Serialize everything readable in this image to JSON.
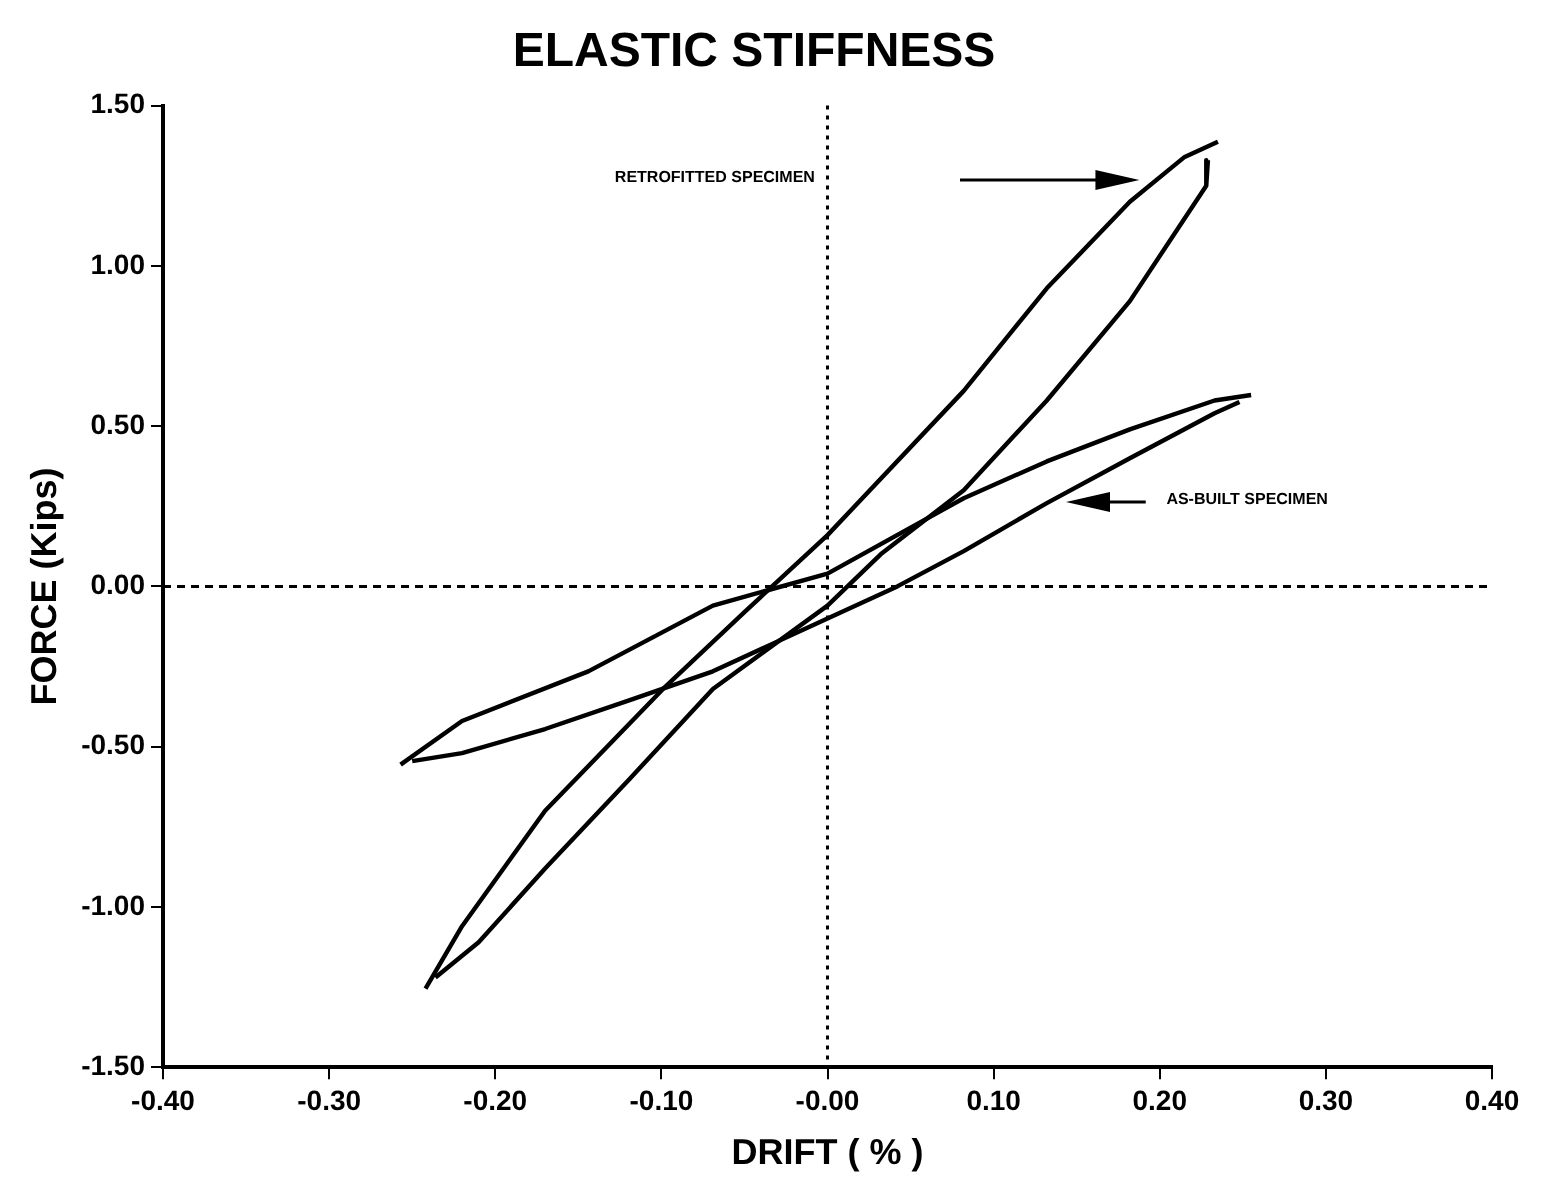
{
  "chart_data": {
    "type": "line",
    "title": "ELASTIC STIFFNESS",
    "xlabel": "DRIFT ( % )",
    "ylabel": "FORCE (Kips)",
    "xlim": [
      -0.4,
      0.4
    ],
    "ylim": [
      -1.5,
      1.5
    ],
    "xticks": [
      {
        "value": -0.4,
        "label": "-0.40"
      },
      {
        "value": -0.3,
        "label": "-0.30"
      },
      {
        "value": -0.2,
        "label": "-0.20"
      },
      {
        "value": -0.1,
        "label": "-0.10"
      },
      {
        "value": 0,
        "label": "-0.00"
      },
      {
        "value": 0.1,
        "label": "0.10"
      },
      {
        "value": 0.2,
        "label": "0.20"
      },
      {
        "value": 0.3,
        "label": "0.30"
      },
      {
        "value": 0.4,
        "label": "0.40"
      }
    ],
    "yticks": [
      {
        "value": -1.5,
        "label": "-1.50"
      },
      {
        "value": -1,
        "label": "-1.00"
      },
      {
        "value": -0.5,
        "label": "-0.50"
      },
      {
        "value": 0,
        "label": "0.00"
      },
      {
        "value": 0.5,
        "label": "0.50"
      },
      {
        "value": 1,
        "label": "1.00"
      },
      {
        "value": 1.5,
        "label": "1.50"
      }
    ],
    "grid": false,
    "legend": false,
    "marker": "none",
    "line_style": "solid",
    "ref_lines": [
      {
        "axis": "x",
        "value": 0,
        "color": "#000000",
        "line_style": "dotted"
      },
      {
        "axis": "y",
        "value": 0,
        "color": "#000000",
        "line_style": "dashed"
      }
    ],
    "series": [
      {
        "color": "#000000",
        "x": [
          -0.242,
          -0.22,
          -0.17,
          -0.099,
          -0.05,
          0,
          0.082,
          0.132,
          0.182,
          0.215,
          0.235
        ],
        "values": [
          -1.255,
          -1.06,
          -0.7,
          -0.32,
          -0.08,
          0.16,
          0.61,
          0.93,
          1.2,
          1.34,
          1.387
        ]
      },
      {
        "color": "#000000",
        "x": [
          0.229,
          0.228,
          0.182,
          0.132,
          0.082,
          0.032,
          0,
          -0.069,
          -0.119,
          -0.17,
          -0.21,
          -0.236
        ],
        "values": [
          1.33,
          1.25,
          0.89,
          0.58,
          0.3,
          0.1,
          -0.06,
          -0.32,
          -0.6,
          -0.88,
          -1.11,
          -1.22
        ]
      },
      {
        "color": "#000000",
        "x": [
          -0.257,
          -0.22,
          -0.144,
          -0.069,
          0,
          0.082,
          0.132,
          0.182,
          0.233,
          0.255
        ],
        "values": [
          -0.556,
          -0.42,
          -0.265,
          -0.06,
          0.04,
          0.275,
          0.39,
          0.49,
          0.58,
          0.597
        ]
      },
      {
        "color": "#000000",
        "x": [
          0.248,
          0.233,
          0.182,
          0.132,
          0.082,
          0.042,
          0,
          -0.069,
          -0.119,
          -0.17,
          -0.22,
          -0.25
        ],
        "values": [
          0.575,
          0.54,
          0.4,
          0.26,
          0.11,
          0,
          -0.1,
          -0.265,
          -0.355,
          -0.445,
          -0.52,
          -0.545
        ]
      }
    ],
    "annotations": [
      "RETROFITTED SPECIMEN",
      "AS-BUILT SPECIMEN"
    ]
  }
}
